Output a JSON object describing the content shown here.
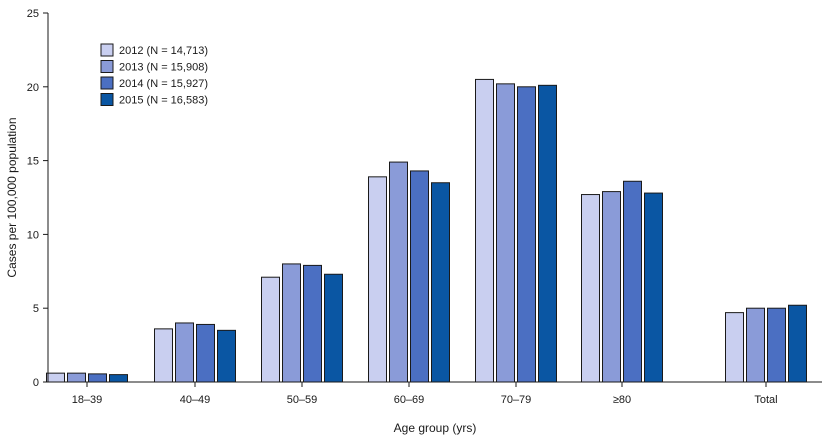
{
  "colors": {
    "series": [
      "#c9cff0",
      "#8a9bd8",
      "#4b6fc2",
      "#0a56a3"
    ],
    "bar_stroke": "#1a1a1a",
    "axis": "#1a1a1a"
  },
  "chart_data": {
    "type": "bar",
    "title": "",
    "xlabel": "Age group (yrs)",
    "ylabel": "Cases per 100,000 population",
    "ylim": [
      0,
      25
    ],
    "yticks": [
      0,
      5,
      10,
      15,
      20,
      25
    ],
    "categories": [
      "18–39",
      "40–49",
      "50–59",
      "60–69",
      "70–79",
      "≥80",
      "Total"
    ],
    "series": [
      {
        "name": "2012 (N = 14,713)",
        "values": [
          0.6,
          3.6,
          7.1,
          13.9,
          20.5,
          12.7,
          4.7
        ]
      },
      {
        "name": "2013 (N = 15,908)",
        "values": [
          0.6,
          4.0,
          8.0,
          14.9,
          20.2,
          12.9,
          5.0
        ]
      },
      {
        "name": "2014 (N = 15,927)",
        "values": [
          0.55,
          3.9,
          7.9,
          14.3,
          20.0,
          13.6,
          5.0
        ]
      },
      {
        "name": "2015 (N = 16,583)",
        "values": [
          0.5,
          3.5,
          7.3,
          13.5,
          20.1,
          12.8,
          5.2
        ]
      }
    ],
    "legend_position": "top-left",
    "grid": false
  }
}
